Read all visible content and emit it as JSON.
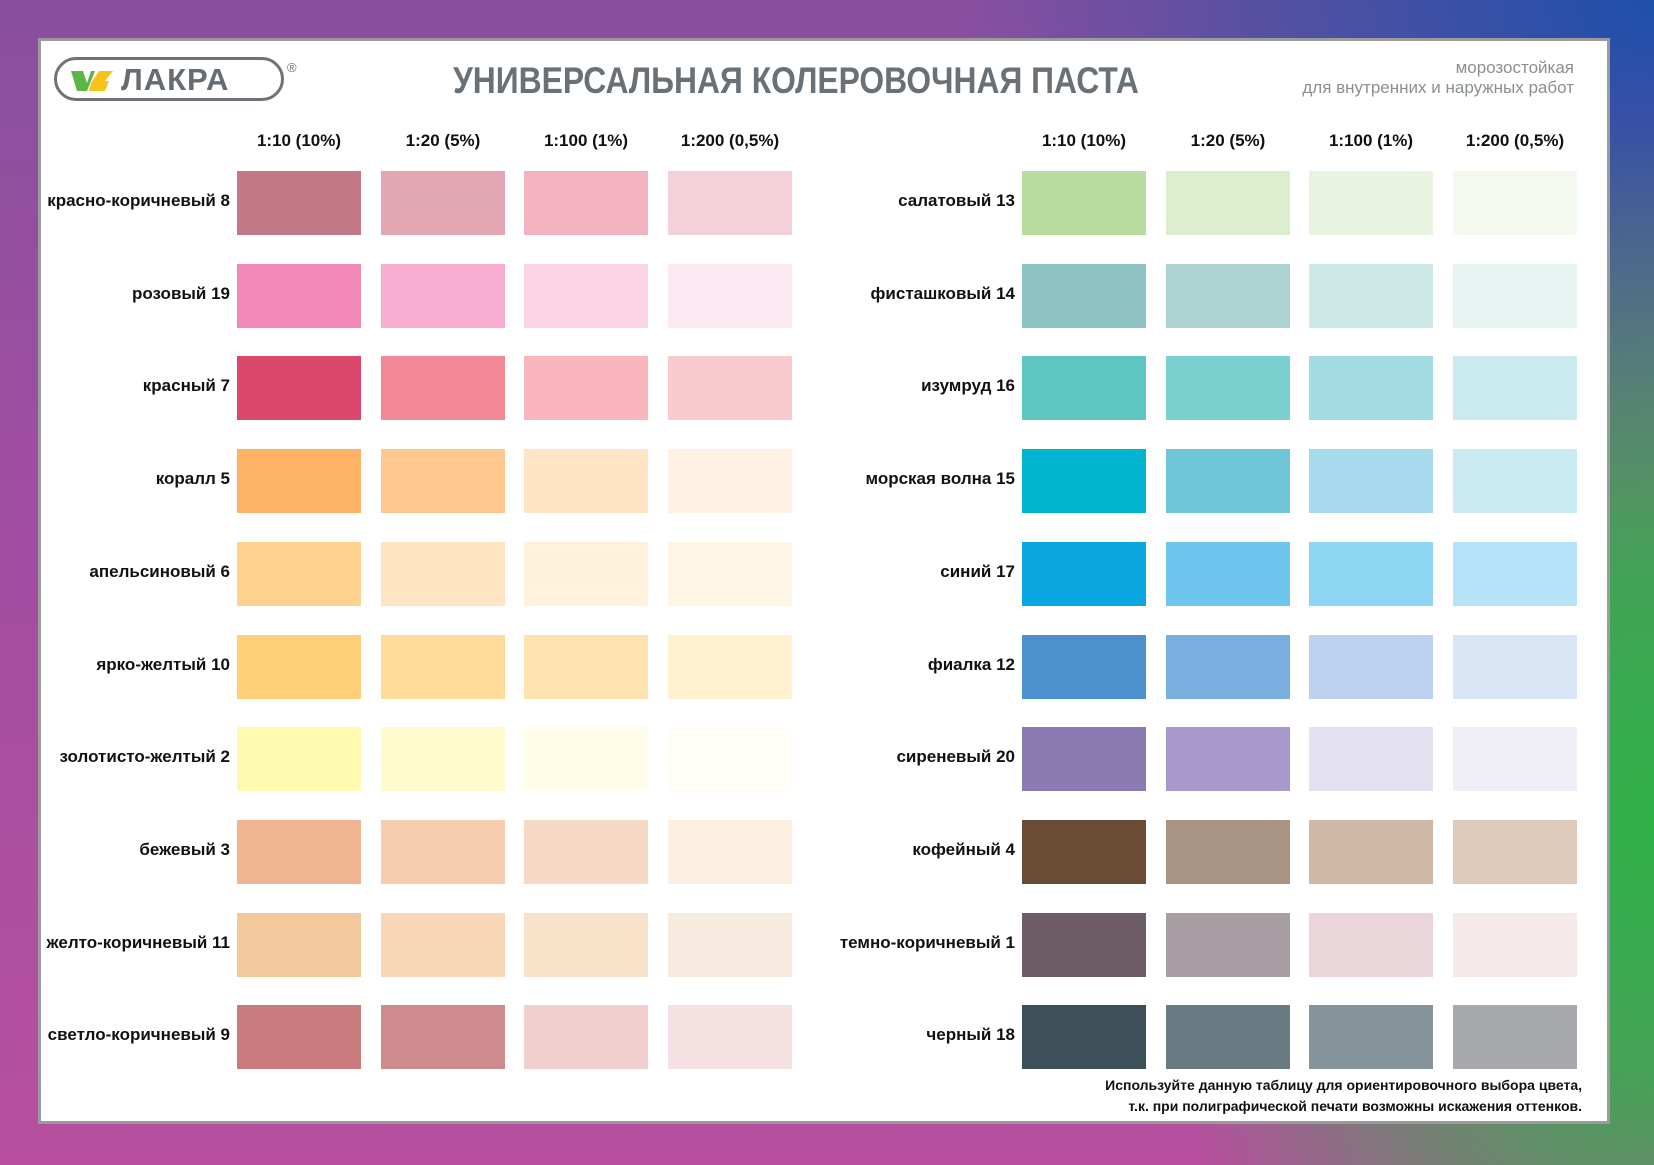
{
  "brand": {
    "name": "ЛАКРА",
    "registered_mark": "®"
  },
  "title": "УНИВЕРСАЛЬНАЯ КОЛЕРОВОЧНАЯ ПАСТА",
  "subtitle": [
    "морозостойкая",
    "для внутренних и наружных работ"
  ],
  "dilution_headers": [
    "1:10 (10%)",
    "1:20 (5%)",
    "1:100 (1%)",
    "1:200 (0,5%)"
  ],
  "left_table": [
    {
      "name": "красно-коричневый 8",
      "colors": [
        "#c27886",
        "#e2a6b3",
        "#f2b2c0",
        "#f4d1d8"
      ]
    },
    {
      "name": "розовый 19",
      "colors": [
        "#f289b8",
        "#f7aed0",
        "#fad4e5",
        "#fce8f1"
      ]
    },
    {
      "name": "красный 7",
      "colors": [
        "#dc476c",
        "#f48896",
        "#f8b6bc",
        "#f9cacd"
      ]
    },
    {
      "name": "коралл 5",
      "colors": [
        "#fdb266",
        "#fec88e",
        "#ffe4c6",
        "#fff1e3"
      ]
    },
    {
      "name": "апельсиновый 6",
      "colors": [
        "#fed18f",
        "#fee4c1",
        "#fff1dc",
        "#fff6e6"
      ]
    },
    {
      "name": "ярко-желтый 10",
      "colors": [
        "#fed078",
        "#fedb96",
        "#fee3b0",
        "#fff0d0"
      ]
    },
    {
      "name": "золотисто-желтый 2",
      "colors": [
        "#fffaaf",
        "#fffbcd",
        "#fffde8",
        "#fffdf5"
      ]
    },
    {
      "name": "бежевый 3",
      "colors": [
        "#efb591",
        "#f6cdae",
        "#f6d9c4",
        "#fcefe2"
      ]
    },
    {
      "name": "желто-коричневый 11",
      "colors": [
        "#f4c89d",
        "#f7d7b5",
        "#f8e2c9",
        "#f7ebdf"
      ]
    },
    {
      "name": "светло-коричневый 9",
      "colors": [
        "#cb7b7e",
        "#cd8b8e",
        "#f2cfcf",
        "#f5e1e1"
      ]
    }
  ],
  "right_table": [
    {
      "name": "салатовый 13",
      "colors": [
        "#b8dc9f",
        "#ddeecf",
        "#e8f3e0",
        "#f3f9ef"
      ]
    },
    {
      "name": "фисташковый 14",
      "colors": [
        "#8fc2c2",
        "#acd2d2",
        "#cce9e5",
        "#e6f3f1"
      ]
    },
    {
      "name": "изумруд 16",
      "colors": [
        "#5fc7c1",
        "#7bd1d0",
        "#a3dde3",
        "#cbeaf0"
      ]
    },
    {
      "name": "морская волна 15",
      "colors": [
        "#00b4d0",
        "#6fc6d8",
        "#a7daed",
        "#c8eaf0"
      ]
    },
    {
      "name": "синий 17",
      "colors": [
        "#0ba7e1",
        "#6ec5ee",
        "#8dd7f5",
        "#b6e3f7"
      ]
    },
    {
      "name": "фиалка 12",
      "colors": [
        "#4a91cd",
        "#7aaedf",
        "#bcd2ee",
        "#d7e5f4"
      ]
    },
    {
      "name": "сиреневый 20",
      "colors": [
        "#8a7bb3",
        "#a799cc",
        "#e3e0ef",
        "#f0eff7"
      ]
    },
    {
      "name": "кофейный 4",
      "colors": [
        "#6a4b35",
        "#a99382",
        "#cfb9a6",
        "#dfcbbb"
      ]
    },
    {
      "name": "темно-коричневый 1",
      "colors": [
        "#6e5c67",
        "#a79da3",
        "#ead5da",
        "#f5e9ea"
      ]
    },
    {
      "name": "черный 18",
      "colors": [
        "#3d4f59",
        "#6a7a83",
        "#85939b",
        "#a7a9ac"
      ]
    }
  ],
  "footnote": [
    "Используйте данную таблицу для ориентировочного выбора цвета,",
    "т.к. при полиграфической печати возможны искажения оттенков."
  ]
}
